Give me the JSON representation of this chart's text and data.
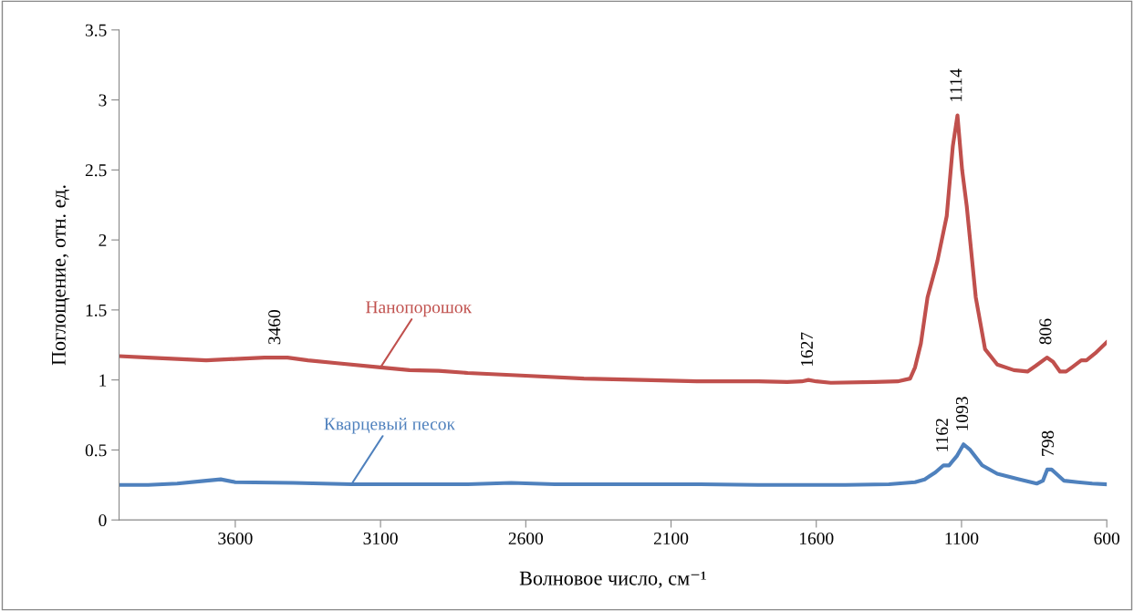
{
  "chart_data": {
    "type": "line",
    "xlabel": "Волновое число, см⁻¹",
    "ylabel": "Поглощение, отн. ед.",
    "xlim": [
      4000,
      600
    ],
    "xticks": [
      3600,
      3100,
      2600,
      2100,
      1600,
      1100,
      600
    ],
    "ylim": [
      0,
      3.5
    ],
    "yticks": [
      0,
      0.5,
      1,
      1.5,
      2,
      2.5,
      3,
      3.5
    ],
    "grid": false,
    "legend": false,
    "marker": "none",
    "line_style": "solid",
    "series": [
      {
        "name": "Нанопорошок",
        "color": "#c0504d",
        "x": [
          4000,
          3900,
          3800,
          3700,
          3600,
          3500,
          3420,
          3350,
          3250,
          3100,
          3000,
          2900,
          2800,
          2600,
          2400,
          2200,
          2000,
          1800,
          1700,
          1650,
          1627,
          1600,
          1550,
          1400,
          1320,
          1277,
          1260,
          1240,
          1217,
          1183,
          1151,
          1130,
          1114,
          1098,
          1082,
          1051,
          1019,
          977,
          920,
          873,
          845,
          806,
          785,
          761,
          740,
          720,
          688,
          670,
          640,
          600
        ],
        "values": [
          1.17,
          1.16,
          1.15,
          1.14,
          1.15,
          1.16,
          1.16,
          1.14,
          1.12,
          1.09,
          1.07,
          1.065,
          1.05,
          1.03,
          1.01,
          1.0,
          0.99,
          0.99,
          0.985,
          0.99,
          1.0,
          0.99,
          0.98,
          0.985,
          0.99,
          1.01,
          1.09,
          1.26,
          1.59,
          1.85,
          2.17,
          2.67,
          2.89,
          2.5,
          2.24,
          1.59,
          1.22,
          1.11,
          1.07,
          1.06,
          1.1,
          1.16,
          1.13,
          1.06,
          1.06,
          1.09,
          1.14,
          1.14,
          1.19,
          1.27
        ]
      },
      {
        "name": "Кварцевый песок",
        "color": "#4f81bd",
        "x": [
          4000,
          3900,
          3800,
          3700,
          3650,
          3600,
          3400,
          3200,
          3000,
          2800,
          2650,
          2500,
          2000,
          1800,
          1500,
          1350,
          1260,
          1227,
          1190,
          1162,
          1143,
          1115,
          1093,
          1070,
          1029,
          977,
          900,
          841,
          820,
          805,
          790,
          779,
          747,
          700,
          650,
          600
        ],
        "values": [
          0.25,
          0.25,
          0.26,
          0.28,
          0.29,
          0.27,
          0.265,
          0.255,
          0.255,
          0.255,
          0.265,
          0.255,
          0.255,
          0.25,
          0.25,
          0.255,
          0.27,
          0.29,
          0.34,
          0.39,
          0.39,
          0.46,
          0.54,
          0.5,
          0.39,
          0.33,
          0.29,
          0.26,
          0.28,
          0.36,
          0.36,
          0.34,
          0.28,
          0.27,
          0.26,
          0.255
        ]
      }
    ],
    "annotations": [
      {
        "text": "3460",
        "x": 3460,
        "y": 1.16
      },
      {
        "text": "1627",
        "x": 1627,
        "y": 1.0
      },
      {
        "text": "1114",
        "x": 1114,
        "y": 2.89
      },
      {
        "text": "806",
        "x": 806,
        "y": 1.16
      },
      {
        "text": "1162",
        "x": 1162,
        "y": 0.39
      },
      {
        "text": "1093",
        "x": 1093,
        "y": 0.54
      },
      {
        "text": "798",
        "x": 798,
        "y": 0.36
      }
    ]
  }
}
